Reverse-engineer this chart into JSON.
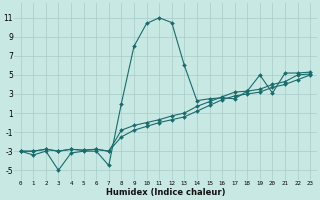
{
  "xlabel": "Humidex (Indice chaleur)",
  "background_color": "#c8e8e4",
  "line_color": "#1a6b6b",
  "xlim": [
    -0.5,
    23.5
  ],
  "ylim": [
    -6.0,
    12.5
  ],
  "yticks": [
    -5,
    -3,
    -1,
    1,
    3,
    5,
    7,
    9,
    11
  ],
  "xticks": [
    0,
    1,
    2,
    3,
    4,
    5,
    6,
    7,
    8,
    9,
    10,
    11,
    12,
    13,
    14,
    15,
    16,
    17,
    18,
    19,
    20,
    21,
    22,
    23
  ],
  "line1_x": [
    0,
    1,
    2,
    3,
    4,
    5,
    6,
    7,
    8,
    9,
    10,
    11,
    12,
    13,
    14,
    15,
    16,
    17,
    18,
    19,
    20,
    21,
    22,
    23
  ],
  "line1_y": [
    -3,
    -3.4,
    -3,
    -5,
    -3.2,
    -3,
    -3,
    -4.5,
    2,
    8,
    10.4,
    11,
    10.5,
    6,
    2.3,
    2.5,
    2.6,
    2.5,
    3.3,
    5,
    3.1,
    5.2,
    5.2,
    5.3
  ],
  "line2_x": [
    0,
    1,
    2,
    3,
    4,
    5,
    6,
    7,
    8,
    9,
    10,
    11,
    12,
    13,
    14,
    15,
    16,
    17,
    18,
    19,
    20,
    21,
    22,
    23
  ],
  "line2_y": [
    -3,
    -3,
    -2.8,
    -3.0,
    -2.8,
    -2.9,
    -2.8,
    -3.0,
    -0.8,
    -0.3,
    0.0,
    0.3,
    0.7,
    1.0,
    1.7,
    2.2,
    2.7,
    3.2,
    3.3,
    3.5,
    4.0,
    4.3,
    5.0,
    5.1
  ],
  "line3_x": [
    0,
    1,
    2,
    3,
    4,
    5,
    6,
    7,
    8,
    9,
    10,
    11,
    12,
    13,
    14,
    15,
    16,
    17,
    18,
    19,
    20,
    21,
    22,
    23
  ],
  "line3_y": [
    -3,
    -3,
    -2.8,
    -3.0,
    -2.8,
    -2.9,
    -2.8,
    -3.0,
    -1.5,
    -0.8,
    -0.4,
    0.0,
    0.3,
    0.6,
    1.2,
    1.8,
    2.4,
    2.8,
    3.0,
    3.2,
    3.7,
    4.0,
    4.5,
    5.0
  ]
}
